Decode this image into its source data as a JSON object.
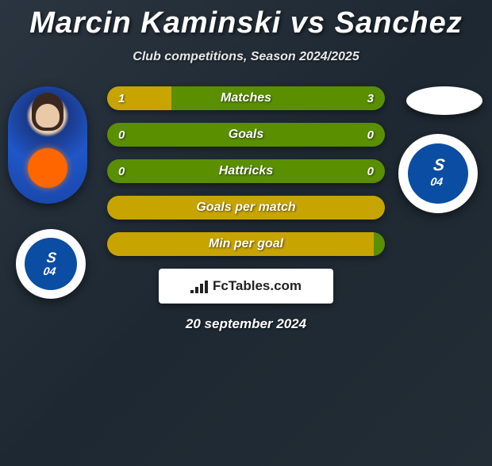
{
  "title": "Marcin Kaminski vs Sanchez",
  "subtitle": "Club competitions, Season 2024/2025",
  "date": "20 september 2024",
  "logo_text": "FcTables.com",
  "colors": {
    "bar_base": "#5a8f00",
    "bar_fill": "#c7a400",
    "background_start": "#2a3540",
    "background_end": "#222d36"
  },
  "bars": [
    {
      "label": "Matches",
      "left": "1",
      "right": "3",
      "fill_pct": 23,
      "full_fill": false
    },
    {
      "label": "Goals",
      "left": "0",
      "right": "0",
      "fill_pct": 0,
      "full_fill": false
    },
    {
      "label": "Hattricks",
      "left": "0",
      "right": "0",
      "fill_pct": 0,
      "full_fill": false
    },
    {
      "label": "Goals per match",
      "left": "",
      "right": "",
      "fill_pct": 100,
      "full_fill": true
    },
    {
      "label": "Min per goal",
      "left": "",
      "right": "",
      "fill_pct": 96,
      "full_fill": false
    }
  ],
  "left_player": {
    "club": "Schalke 04"
  },
  "right_player": {
    "club": "Schalke 04"
  }
}
